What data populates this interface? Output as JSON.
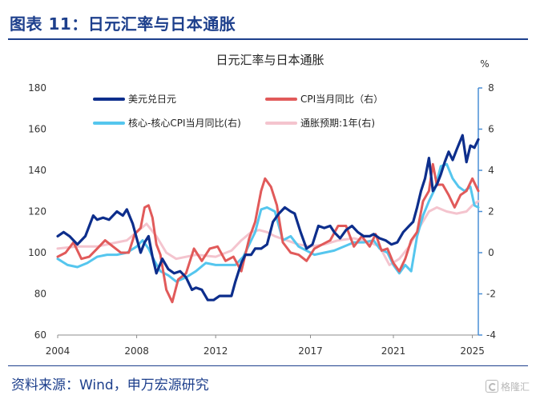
{
  "header": {
    "title": "图表 11：日元汇率与日本通胀"
  },
  "footer": {
    "source": "资料来源：Wind，申万宏源研究",
    "watermark": "格隆汇"
  },
  "colors": {
    "usdjpy": "#0d2e8c",
    "cpi": "#e15a5a",
    "core_cpi": "#55c6ee",
    "expect": "#f4c4ce",
    "title_blue": "#1d3f8c"
  },
  "chart_data": {
    "type": "line",
    "title": "日元汇率与日本通胀",
    "left_axis": {
      "ylim": [
        60,
        180
      ],
      "ticks": [
        60,
        80,
        100,
        120,
        140,
        160,
        180
      ]
    },
    "right_axis": {
      "unit": "%",
      "ylim": [
        -4,
        8
      ],
      "ticks": [
        -4,
        -2,
        0,
        2,
        4,
        6,
        8
      ]
    },
    "x_axis": {
      "xlim": [
        2004,
        2025.3
      ],
      "ticks": [
        "2004",
        "2008",
        "2012",
        "2017",
        "2021",
        "2025"
      ],
      "tick_positions": [
        2004,
        2008,
        2012,
        2016.8,
        2021,
        2025
      ]
    },
    "legend": [
      "美元兑日元",
      "CPI当月同比（右）",
      "核心-核心CPI当月同比(右)",
      "通胀预期:1年(右)"
    ],
    "series": [
      {
        "name": "美元兑日元",
        "axis": "left",
        "x": [
          2004.0,
          2004.3,
          2004.6,
          2005.0,
          2005.4,
          2005.8,
          2006.0,
          2006.3,
          2006.6,
          2007.0,
          2007.3,
          2007.5,
          2007.8,
          2008.0,
          2008.2,
          2008.4,
          2008.6,
          2008.8,
          2009.0,
          2009.3,
          2009.6,
          2009.9,
          2010.2,
          2010.5,
          2010.8,
          2011.0,
          2011.3,
          2011.6,
          2011.9,
          2012.2,
          2012.5,
          2012.8,
          2013.0,
          2013.3,
          2013.5,
          2013.8,
          2014.0,
          2014.3,
          2014.6,
          2014.9,
          2015.2,
          2015.5,
          2015.8,
          2016.0,
          2016.3,
          2016.6,
          2016.9,
          2017.2,
          2017.5,
          2017.8,
          2018.0,
          2018.3,
          2018.6,
          2018.9,
          2019.2,
          2019.5,
          2019.8,
          2020.0,
          2020.3,
          2020.6,
          2020.9,
          2021.2,
          2021.5,
          2021.8,
          2022.0,
          2022.2,
          2022.4,
          2022.6,
          2022.8,
          2023.0,
          2023.2,
          2023.4,
          2023.6,
          2023.8,
          2024.0,
          2024.2,
          2024.5,
          2024.7,
          2024.9,
          2025.1,
          2025.3
        ],
        "values": [
          108,
          110,
          108,
          104,
          108,
          118,
          116,
          117,
          116,
          120,
          118,
          121,
          114,
          107,
          100,
          105,
          108,
          98,
          90,
          97,
          92,
          90,
          91,
          88,
          82,
          83,
          82,
          77,
          77,
          79,
          79,
          79,
          86,
          95,
          99,
          99,
          102,
          102,
          104,
          115,
          119,
          122,
          120,
          119,
          110,
          102,
          104,
          113,
          112,
          113,
          110,
          107,
          111,
          113,
          110,
          108,
          108,
          109,
          107,
          106,
          104,
          105,
          110,
          113,
          115,
          122,
          130,
          136,
          146,
          130,
          133,
          138,
          144,
          149,
          145,
          150,
          157,
          144,
          152,
          151,
          155
        ]
      },
      {
        "name": "CPI当月同比（右）",
        "axis": "right",
        "x": [
          2004.0,
          2004.4,
          2004.8,
          2005.2,
          2005.6,
          2006.0,
          2006.4,
          2006.8,
          2007.2,
          2007.6,
          2007.9,
          2008.2,
          2008.4,
          2008.6,
          2008.8,
          2009.0,
          2009.2,
          2009.5,
          2009.8,
          2010.1,
          2010.5,
          2010.9,
          2011.3,
          2011.7,
          2012.1,
          2012.5,
          2012.9,
          2013.3,
          2013.7,
          2014.0,
          2014.3,
          2014.5,
          2014.8,
          2015.1,
          2015.4,
          2015.8,
          2016.2,
          2016.6,
          2017.0,
          2017.4,
          2017.8,
          2018.2,
          2018.6,
          2019.0,
          2019.4,
          2019.8,
          2020.1,
          2020.4,
          2020.7,
          2021.0,
          2021.3,
          2021.6,
          2021.9,
          2022.2,
          2022.5,
          2022.8,
          2023.0,
          2023.2,
          2023.5,
          2023.8,
          2024.1,
          2024.4,
          2024.7,
          2025.0,
          2025.3
        ],
        "values": [
          -0.2,
          0.0,
          0.5,
          -0.3,
          -0.2,
          0.2,
          0.6,
          0.3,
          0.0,
          0.0,
          0.9,
          1.2,
          2.2,
          2.3,
          1.7,
          0.4,
          -0.1,
          -1.8,
          -2.4,
          -1.3,
          -1.0,
          0.2,
          -0.4,
          0.2,
          0.3,
          -0.4,
          -0.2,
          -0.9,
          0.7,
          1.5,
          3.0,
          3.6,
          3.2,
          2.3,
          0.5,
          0.0,
          -0.1,
          -0.4,
          0.2,
          0.4,
          0.6,
          1.3,
          1.3,
          0.3,
          0.8,
          0.3,
          0.9,
          0.1,
          0.2,
          -0.5,
          -0.9,
          -0.3,
          0.6,
          1.0,
          2.5,
          3.0,
          4.3,
          3.3,
          3.3,
          2.8,
          2.2,
          2.8,
          3.0,
          3.6,
          3.0
        ]
      },
      {
        "name": "核心-核心CPI当月同比(右)",
        "axis": "right",
        "x": [
          2004.0,
          2004.5,
          2005.0,
          2005.5,
          2006.0,
          2006.5,
          2007.0,
          2007.5,
          2008.0,
          2008.3,
          2008.6,
          2008.9,
          2009.2,
          2009.6,
          2010.0,
          2010.5,
          2011.0,
          2011.5,
          2012.0,
          2012.5,
          2013.0,
          2013.4,
          2013.8,
          2014.0,
          2014.3,
          2014.6,
          2015.0,
          2015.4,
          2015.8,
          2016.2,
          2016.6,
          2017.0,
          2017.5,
          2018.0,
          2018.5,
          2019.0,
          2019.5,
          2020.0,
          2020.3,
          2020.7,
          2021.0,
          2021.3,
          2021.6,
          2021.9,
          2022.2,
          2022.5,
          2022.8,
          2023.1,
          2023.4,
          2023.7,
          2024.0,
          2024.3,
          2024.6,
          2024.9,
          2025.1,
          2025.3
        ],
        "values": [
          -0.3,
          -0.6,
          -0.7,
          -0.5,
          -0.2,
          -0.1,
          -0.1,
          0.0,
          0.3,
          0.6,
          0.2,
          -0.4,
          -0.9,
          -1.1,
          -1.4,
          -1.2,
          -0.9,
          -0.5,
          -0.6,
          -0.6,
          -0.6,
          -0.2,
          0.6,
          1.0,
          2.1,
          2.2,
          2.0,
          0.6,
          0.8,
          0.3,
          0.1,
          -0.1,
          0.0,
          0.1,
          0.3,
          0.5,
          0.5,
          0.6,
          0.2,
          0.0,
          -0.6,
          -1.0,
          -0.6,
          -0.9,
          0.8,
          1.8,
          2.5,
          3.1,
          4.2,
          4.3,
          3.6,
          3.2,
          3.0,
          3.2,
          2.3,
          2.2
        ]
      },
      {
        "name": "通胀预期:1年(右)",
        "axis": "right",
        "x": [
          2004.0,
          2005.0,
          2006.0,
          2007.0,
          2007.5,
          2008.0,
          2008.5,
          2009.0,
          2009.5,
          2010.0,
          2011.0,
          2012.0,
          2012.8,
          2013.3,
          2013.8,
          2014.2,
          2014.6,
          2015.0,
          2015.6,
          2016.2,
          2016.8,
          2017.5,
          2018.2,
          2019.0,
          2019.8,
          2020.3,
          2020.8,
          2021.3,
          2021.8,
          2022.3,
          2022.8,
          2023.2,
          2023.7,
          2024.2,
          2024.7,
          2025.0,
          2025.3
        ],
        "values": [
          0.2,
          0.3,
          0.3,
          0.5,
          0.6,
          1.0,
          1.4,
          0.8,
          0.0,
          -0.3,
          -0.1,
          -0.2,
          0.1,
          0.6,
          1.0,
          1.1,
          1.0,
          0.8,
          0.6,
          0.4,
          0.3,
          0.4,
          0.6,
          0.7,
          0.5,
          0.3,
          -0.6,
          -0.3,
          0.3,
          1.2,
          2.0,
          2.2,
          2.0,
          1.9,
          2.0,
          2.3,
          2.5
        ]
      }
    ]
  }
}
